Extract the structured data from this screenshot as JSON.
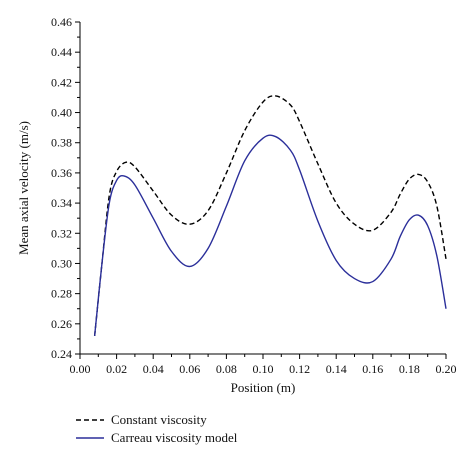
{
  "chart_data": {
    "type": "line",
    "title": "",
    "xlabel": "Position (m)",
    "ylabel": "Mean axial velocity (m/s)",
    "xlim": [
      0.0,
      0.2
    ],
    "ylim": [
      0.24,
      0.46
    ],
    "x_ticks": [
      "0.00",
      "0.02",
      "0.04",
      "0.06",
      "0.08",
      "0.10",
      "0.12",
      "0.14",
      "0.16",
      "0.18",
      "0.20"
    ],
    "y_ticks": [
      "0.24",
      "0.26",
      "0.28",
      "0.30",
      "0.32",
      "0.34",
      "0.36",
      "0.38",
      "0.40",
      "0.42",
      "0.44",
      "0.46"
    ],
    "grid": false,
    "legend_position": "bottom-left, below plot",
    "series": [
      {
        "name": "Constant viscosity",
        "style": "dashed",
        "color": "#000000",
        "x": [
          0.008,
          0.012,
          0.016,
          0.02,
          0.025,
          0.03,
          0.04,
          0.05,
          0.06,
          0.07,
          0.08,
          0.09,
          0.1,
          0.107,
          0.115,
          0.12,
          0.13,
          0.14,
          0.15,
          0.16,
          0.17,
          0.175,
          0.18,
          0.185,
          0.19,
          0.195,
          0.2
        ],
        "y": [
          0.252,
          0.3,
          0.345,
          0.361,
          0.367,
          0.364,
          0.348,
          0.332,
          0.326,
          0.335,
          0.36,
          0.388,
          0.407,
          0.411,
          0.405,
          0.394,
          0.366,
          0.34,
          0.326,
          0.322,
          0.334,
          0.346,
          0.356,
          0.359,
          0.354,
          0.338,
          0.303
        ]
      },
      {
        "name": "Carreau viscosity model",
        "style": "solid",
        "color": "#2b2f9a",
        "x": [
          0.008,
          0.012,
          0.016,
          0.02,
          0.024,
          0.03,
          0.04,
          0.05,
          0.06,
          0.07,
          0.08,
          0.09,
          0.1,
          0.107,
          0.115,
          0.12,
          0.13,
          0.14,
          0.15,
          0.16,
          0.17,
          0.175,
          0.18,
          0.185,
          0.19,
          0.195,
          0.2
        ],
        "y": [
          0.252,
          0.3,
          0.34,
          0.355,
          0.358,
          0.352,
          0.33,
          0.308,
          0.298,
          0.31,
          0.338,
          0.368,
          0.383,
          0.384,
          0.375,
          0.362,
          0.328,
          0.302,
          0.29,
          0.288,
          0.303,
          0.318,
          0.329,
          0.332,
          0.325,
          0.305,
          0.27
        ]
      }
    ]
  }
}
